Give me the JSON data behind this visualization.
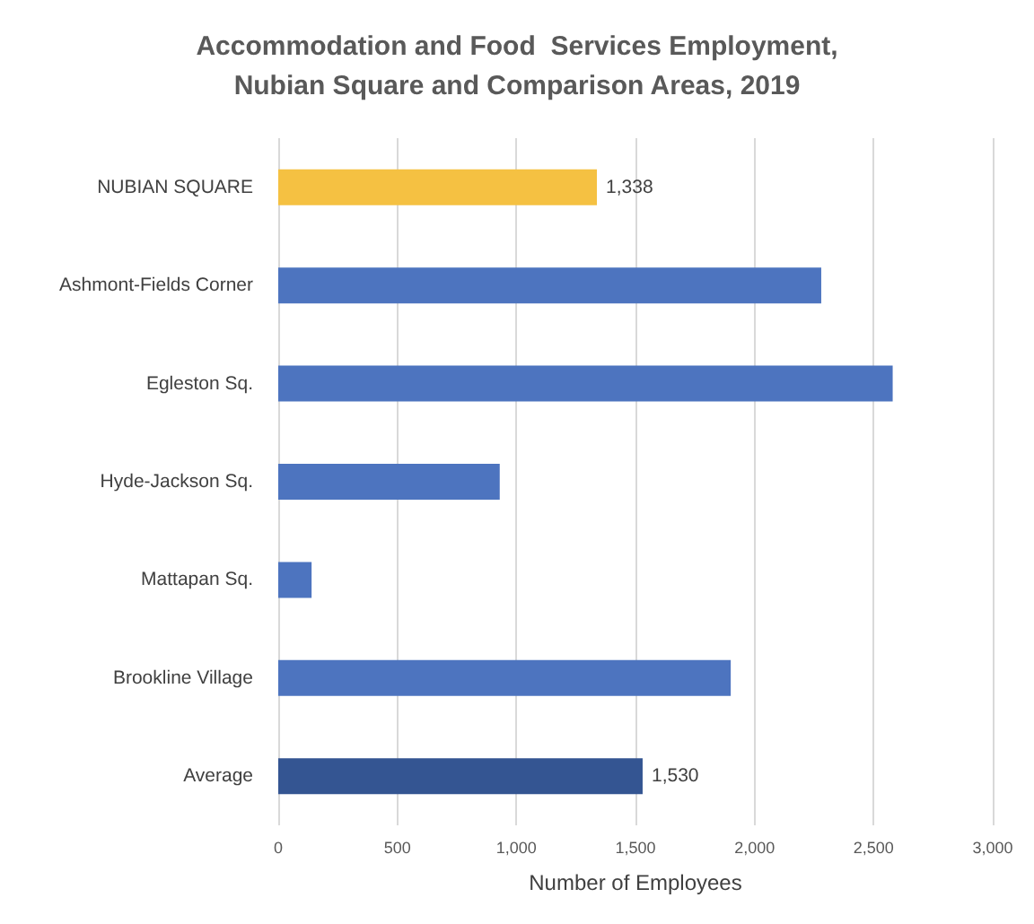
{
  "chart_data": {
    "type": "bar",
    "orientation": "horizontal",
    "title": "Accommodation and Food  Services Employment,\nNubian Square and Comparison Areas, 2019",
    "xlabel": "Number of Employees",
    "categories": [
      "NUBIAN SQUARE",
      "Ashmont-Fields Corner",
      "Egleston Sq.",
      "Hyde-Jackson Sq.",
      "Mattapan Sq.",
      "Brookline Village",
      "Average"
    ],
    "values": [
      1338,
      2280,
      2580,
      930,
      140,
      1900,
      1530
    ],
    "colors": [
      "#f5c142",
      "#4d74bf",
      "#4d74bf",
      "#4d74bf",
      "#4d74bf",
      "#4d74bf",
      "#345592"
    ],
    "value_labels": [
      "1,338",
      null,
      null,
      null,
      null,
      null,
      "1,530"
    ],
    "xlim": [
      0,
      3000
    ],
    "xticks": [
      {
        "value": 0,
        "label": "0"
      },
      {
        "value": 500,
        "label": "500"
      },
      {
        "value": 1000,
        "label": "1,000"
      },
      {
        "value": 1500,
        "label": "1,500"
      },
      {
        "value": 2000,
        "label": "2,000"
      },
      {
        "value": 2500,
        "label": "2,500"
      },
      {
        "value": 3000,
        "label": "3,000"
      }
    ],
    "grid": "x"
  }
}
